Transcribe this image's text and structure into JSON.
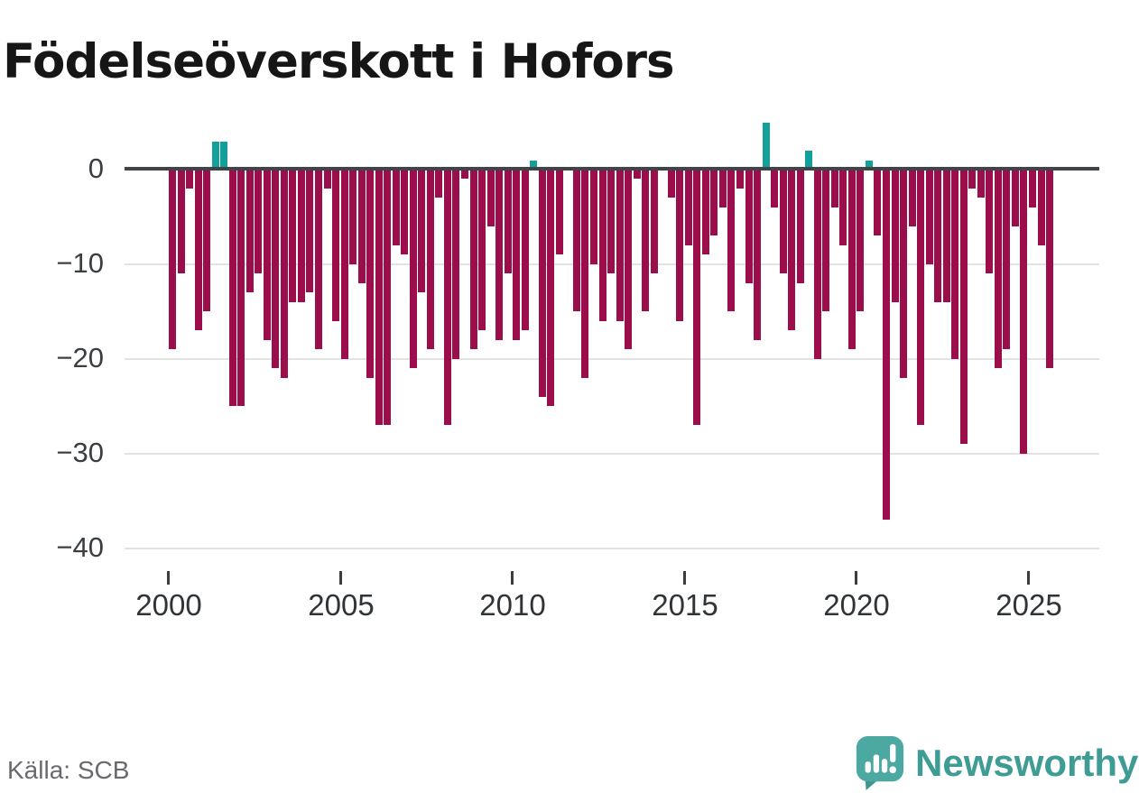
{
  "title": "Födelseöverskott i Hofors",
  "source": {
    "label": "Källa: SCB"
  },
  "branding": {
    "wordmark": "Newsworthy",
    "logo_icon": "newsworthy-speech-bubble-bar-chart-icon"
  },
  "colors": {
    "negative_bar": "#9b0d4b",
    "positive_bar": "#13a09a",
    "axis_line": "#3f4446",
    "gridline": "#e3e3e3",
    "y_tick_label": "#3a3e40",
    "x_tick_label": "#303436",
    "title_text": "#161616",
    "source_text": "#69696e",
    "wordmark_text": "#3e9c95",
    "logo_bubble": "#4ba9a2"
  },
  "chart_data": {
    "type": "bar",
    "title": "Födelseöverskott i Hofors",
    "frequency": "quarterly",
    "start_quarter": "2000Q1",
    "end_quarter": "2025Q3",
    "x_ticks": [
      2000,
      2005,
      2010,
      2015,
      2020,
      2025
    ],
    "x_tick_labels": [
      "2000",
      "2005",
      "2010",
      "2015",
      "2020",
      "2025"
    ],
    "y_ticks": [
      0,
      -10,
      -20,
      -30,
      -40
    ],
    "y_tick_labels": [
      "0",
      "−10",
      "−20",
      "−30",
      "−40"
    ],
    "ylim": [
      -42,
      6
    ],
    "grid": "horizontal",
    "legend": "none",
    "positive_color_meaning": "birth surplus",
    "negative_color_meaning": "birth deficit",
    "values_by_year": {
      "2000": [
        -19,
        -11,
        -2,
        -17
      ],
      "2001": [
        -15,
        3,
        3,
        -25
      ],
      "2002": [
        -25,
        -13,
        -11,
        -18
      ],
      "2003": [
        -21,
        -22,
        -14,
        -14
      ],
      "2004": [
        -13,
        -19,
        -2,
        -16
      ],
      "2005": [
        -20,
        -10,
        -12,
        -22
      ],
      "2006": [
        -27,
        -27,
        -8,
        -9
      ],
      "2007": [
        -21,
        -13,
        -19,
        -3
      ],
      "2008": [
        -27,
        -20,
        -1,
        -19
      ],
      "2009": [
        -17,
        -6,
        -18,
        -11
      ],
      "2010": [
        -18,
        -17,
        1,
        -24
      ],
      "2011": [
        -25,
        -9,
        0,
        -15
      ],
      "2012": [
        -22,
        -10,
        -16,
        -11
      ],
      "2013": [
        -16,
        -19,
        -1,
        -15
      ],
      "2014": [
        -11,
        0,
        -3,
        -16
      ],
      "2015": [
        -8,
        -27,
        -9,
        -7
      ],
      "2016": [
        -4,
        -15,
        -2,
        -12
      ],
      "2017": [
        -18,
        5,
        -4,
        -11
      ],
      "2018": [
        -17,
        -12,
        2,
        -20
      ],
      "2019": [
        -15,
        -4,
        -8,
        -19
      ],
      "2020": [
        -15,
        1,
        -7,
        -37
      ],
      "2021": [
        -14,
        -22,
        -6,
        -27
      ],
      "2022": [
        -10,
        -14,
        -14,
        -20
      ],
      "2023": [
        -29,
        -2,
        -3,
        -11
      ],
      "2024": [
        -21,
        -19,
        -6,
        -30
      ],
      "2025": [
        -4,
        -8,
        -21
      ]
    }
  }
}
